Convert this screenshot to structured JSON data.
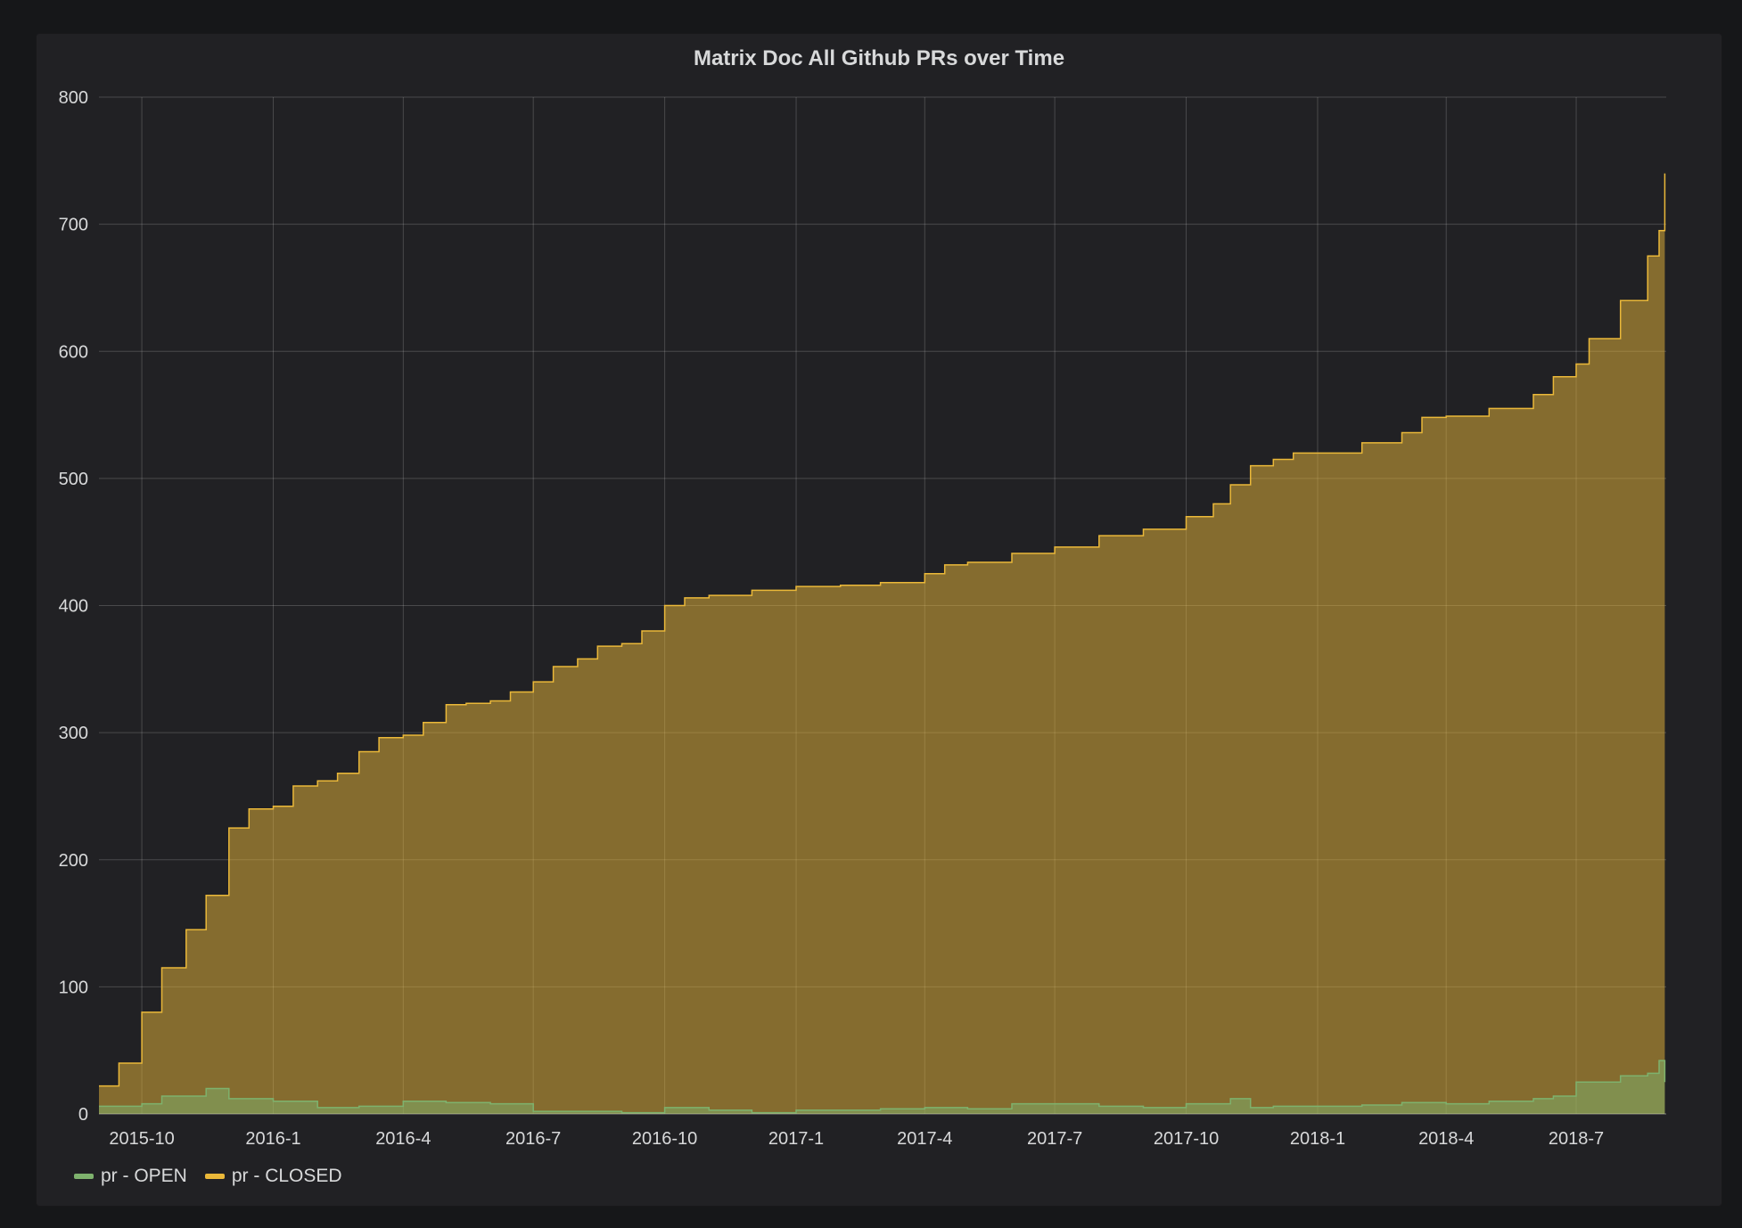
{
  "chart_data": {
    "type": "area",
    "title": "Matrix Doc All Github PRs over Time",
    "xlabel": "",
    "ylabel": "",
    "xlim": [
      "2015-09-01",
      "2018-09-02"
    ],
    "ylim": [
      0,
      800
    ],
    "y_ticks": [
      "0",
      "100",
      "200",
      "300",
      "400",
      "500",
      "600",
      "700",
      "800"
    ],
    "x_ticks": [
      {
        "label": "2015-10",
        "date": "2015-10-01"
      },
      {
        "label": "2016-1",
        "date": "2016-01-01"
      },
      {
        "label": "2016-4",
        "date": "2016-04-01"
      },
      {
        "label": "2016-7",
        "date": "2016-07-01"
      },
      {
        "label": "2016-10",
        "date": "2016-10-01"
      },
      {
        "label": "2017-1",
        "date": "2017-01-01"
      },
      {
        "label": "2017-4",
        "date": "2017-04-01"
      },
      {
        "label": "2017-7",
        "date": "2017-07-01"
      },
      {
        "label": "2017-10",
        "date": "2017-10-01"
      },
      {
        "label": "2018-1",
        "date": "2018-01-01"
      },
      {
        "label": "2018-4",
        "date": "2018-04-01"
      },
      {
        "label": "2018-7",
        "date": "2018-07-01"
      }
    ],
    "grid": true,
    "legend_position": "bottom-left",
    "series": [
      {
        "name": "pr - CLOSED",
        "color": "#EAB839",
        "points": [
          [
            "2015-09-01",
            22
          ],
          [
            "2015-09-15",
            40
          ],
          [
            "2015-10-01",
            80
          ],
          [
            "2015-10-15",
            115
          ],
          [
            "2015-11-01",
            145
          ],
          [
            "2015-11-15",
            172
          ],
          [
            "2015-12-01",
            225
          ],
          [
            "2015-12-15",
            240
          ],
          [
            "2016-01-01",
            242
          ],
          [
            "2016-01-15",
            258
          ],
          [
            "2016-02-01",
            262
          ],
          [
            "2016-02-15",
            268
          ],
          [
            "2016-03-01",
            285
          ],
          [
            "2016-03-15",
            296
          ],
          [
            "2016-04-01",
            298
          ],
          [
            "2016-04-15",
            308
          ],
          [
            "2016-05-01",
            322
          ],
          [
            "2016-05-15",
            323
          ],
          [
            "2016-06-01",
            325
          ],
          [
            "2016-06-15",
            332
          ],
          [
            "2016-07-01",
            340
          ],
          [
            "2016-07-15",
            352
          ],
          [
            "2016-08-01",
            358
          ],
          [
            "2016-08-15",
            368
          ],
          [
            "2016-09-01",
            370
          ],
          [
            "2016-09-15",
            380
          ],
          [
            "2016-10-01",
            400
          ],
          [
            "2016-10-15",
            406
          ],
          [
            "2016-11-01",
            408
          ],
          [
            "2016-12-01",
            412
          ],
          [
            "2017-01-01",
            415
          ],
          [
            "2017-02-01",
            416
          ],
          [
            "2017-03-01",
            418
          ],
          [
            "2017-04-01",
            425
          ],
          [
            "2017-04-15",
            432
          ],
          [
            "2017-05-01",
            434
          ],
          [
            "2017-06-01",
            441
          ],
          [
            "2017-07-01",
            446
          ],
          [
            "2017-08-01",
            455
          ],
          [
            "2017-09-01",
            460
          ],
          [
            "2017-10-01",
            470
          ],
          [
            "2017-10-20",
            480
          ],
          [
            "2017-11-01",
            495
          ],
          [
            "2017-11-15",
            510
          ],
          [
            "2017-12-01",
            515
          ],
          [
            "2017-12-15",
            520
          ],
          [
            "2018-01-01",
            520
          ],
          [
            "2018-02-01",
            528
          ],
          [
            "2018-03-01",
            536
          ],
          [
            "2018-03-15",
            548
          ],
          [
            "2018-04-01",
            549
          ],
          [
            "2018-05-01",
            555
          ],
          [
            "2018-06-01",
            566
          ],
          [
            "2018-06-15",
            580
          ],
          [
            "2018-07-01",
            590
          ],
          [
            "2018-07-10",
            610
          ],
          [
            "2018-08-01",
            640
          ],
          [
            "2018-08-20",
            675
          ],
          [
            "2018-08-28",
            695
          ],
          [
            "2018-09-01",
            740
          ]
        ]
      },
      {
        "name": "pr - OPEN",
        "color": "#7EB26D",
        "points": [
          [
            "2015-09-01",
            6
          ],
          [
            "2015-10-01",
            8
          ],
          [
            "2015-10-15",
            14
          ],
          [
            "2015-11-15",
            20
          ],
          [
            "2015-12-01",
            12
          ],
          [
            "2016-01-01",
            10
          ],
          [
            "2016-02-01",
            5
          ],
          [
            "2016-03-01",
            6
          ],
          [
            "2016-04-01",
            10
          ],
          [
            "2016-05-01",
            9
          ],
          [
            "2016-06-01",
            8
          ],
          [
            "2016-07-01",
            2
          ],
          [
            "2016-08-01",
            2
          ],
          [
            "2016-09-01",
            1
          ],
          [
            "2016-10-01",
            5
          ],
          [
            "2016-11-01",
            3
          ],
          [
            "2016-12-01",
            1
          ],
          [
            "2017-01-01",
            3
          ],
          [
            "2017-02-01",
            3
          ],
          [
            "2017-03-01",
            4
          ],
          [
            "2017-04-01",
            5
          ],
          [
            "2017-05-01",
            4
          ],
          [
            "2017-06-01",
            8
          ],
          [
            "2017-07-01",
            8
          ],
          [
            "2017-08-01",
            6
          ],
          [
            "2017-09-01",
            5
          ],
          [
            "2017-10-01",
            8
          ],
          [
            "2017-11-01",
            12
          ],
          [
            "2017-11-15",
            5
          ],
          [
            "2017-12-01",
            6
          ],
          [
            "2018-01-01",
            6
          ],
          [
            "2018-02-01",
            7
          ],
          [
            "2018-03-01",
            9
          ],
          [
            "2018-04-01",
            8
          ],
          [
            "2018-05-01",
            10
          ],
          [
            "2018-06-01",
            12
          ],
          [
            "2018-06-15",
            14
          ],
          [
            "2018-07-01",
            25
          ],
          [
            "2018-08-01",
            30
          ],
          [
            "2018-08-20",
            32
          ],
          [
            "2018-08-28",
            42
          ],
          [
            "2018-09-01",
            25
          ]
        ]
      }
    ],
    "legend": [
      {
        "label": "pr - OPEN",
        "color": "#7EB26D"
      },
      {
        "label": "pr - CLOSED",
        "color": "#EAB839"
      }
    ]
  }
}
